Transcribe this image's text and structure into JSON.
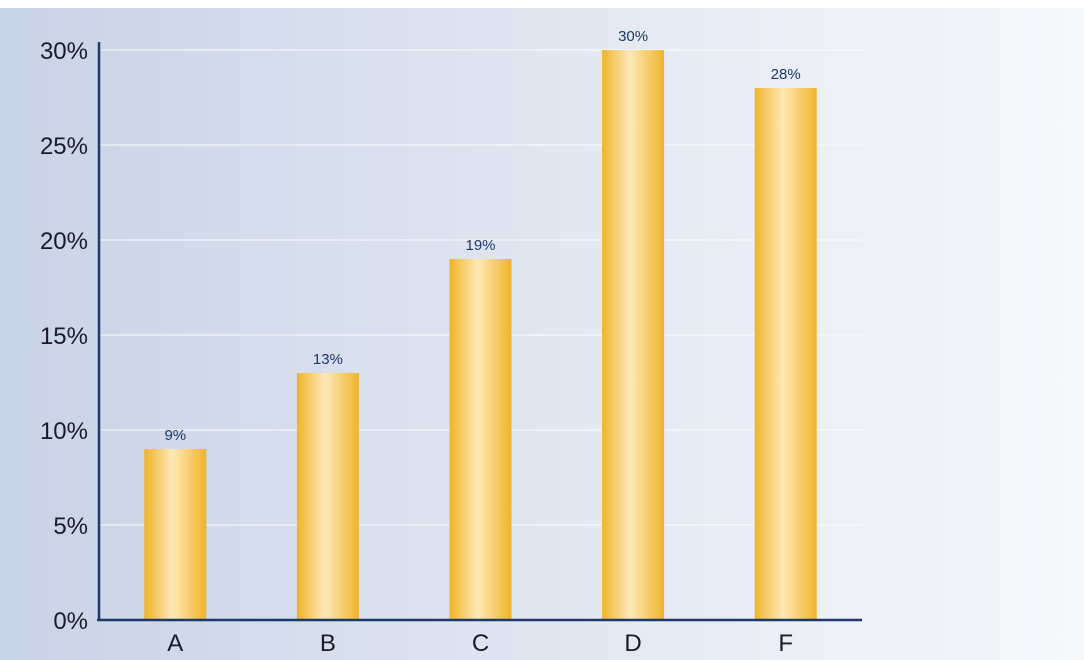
{
  "chart_data": {
    "type": "bar",
    "title": "",
    "xlabel": "",
    "ylabel": "",
    "categories": [
      "A",
      "B",
      "C",
      "D",
      "F"
    ],
    "values": [
      9,
      13,
      19,
      30,
      28
    ],
    "data_labels": [
      "9%",
      "13%",
      "19%",
      "30%",
      "28%"
    ],
    "ylim": [
      0,
      30
    ],
    "yticks": [
      0,
      5,
      10,
      15,
      20,
      25,
      30
    ],
    "ytick_labels": [
      "0%",
      "5%",
      "10%",
      "15%",
      "20%",
      "25%",
      "30%"
    ],
    "grid": true,
    "legend": "none",
    "colors": {
      "bar_edge": "#f0b429",
      "bar_center": "#fde9b8",
      "axis": "#1b3a6b",
      "grid": "#ffffff",
      "background_left": "#c8d3e6",
      "background_right": "#f7f8fc",
      "data_label": "#1b3a6b"
    }
  }
}
